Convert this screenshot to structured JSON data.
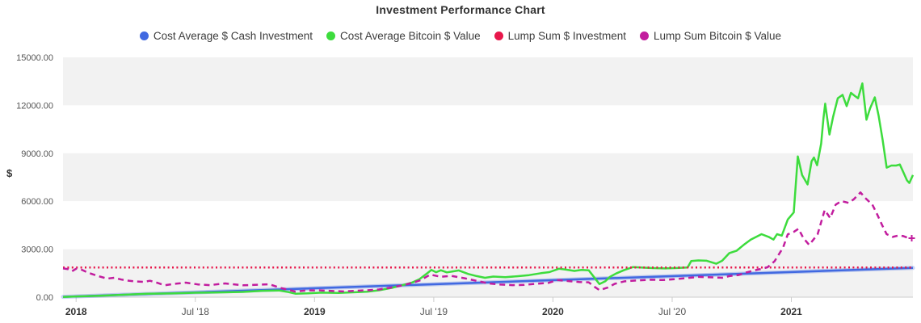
{
  "title": "Investment Performance Chart",
  "legend": {
    "items": [
      {
        "label": "Cost Average $ Cash Investment",
        "color": "#4169e1"
      },
      {
        "label": "Cost Average Bitcoin $ Value",
        "color": "#3ddc3d"
      },
      {
        "label": "Lump Sum $ Investment",
        "color": "#e8174b"
      },
      {
        "label": "Lump Sum Bitcoin $ Value",
        "color": "#c21d9e"
      }
    ]
  },
  "chart_data": {
    "type": "line",
    "title": "Investment Performance Chart",
    "ylabel": "$",
    "legend_position": "top",
    "grid_bands": true,
    "band_colors": [
      "#f2f2f2",
      "#ffffff"
    ],
    "axis_color": "#cccccc",
    "x_domain": [
      2017.945,
      2021.51
    ],
    "y_domain": [
      0,
      15000
    ],
    "y_ticks": [
      {
        "value": 15000,
        "label": "15000.00"
      },
      {
        "value": 12000,
        "label": "12000.00"
      },
      {
        "value": 9000,
        "label": "9000.00"
      },
      {
        "value": 6000,
        "label": "6000.00"
      },
      {
        "value": 3000,
        "label": "3000.00"
      },
      {
        "value": 0,
        "label": "0.00"
      }
    ],
    "x_ticks": [
      {
        "value": 2018,
        "label": "2018",
        "bold": true
      },
      {
        "value": 2018.5,
        "label": "Jul '18",
        "bold": false
      },
      {
        "value": 2019,
        "label": "2019",
        "bold": true
      },
      {
        "value": 2019.5,
        "label": "Jul '19",
        "bold": false
      },
      {
        "value": 2020,
        "label": "2020",
        "bold": true
      },
      {
        "value": 2020.5,
        "label": "Jul '20",
        "bold": false
      },
      {
        "value": 2021,
        "label": "2021",
        "bold": true
      }
    ],
    "series": [
      {
        "name": "Cost Average $ Cash Investment",
        "color": "#4169e1",
        "style": "solid",
        "glow": true,
        "points": [
          [
            2017.945,
            20
          ],
          [
            2021.51,
            1830
          ]
        ]
      },
      {
        "name": "Cost Average Bitcoin $ Value",
        "color": "#3ddc3d",
        "style": "solid",
        "points": [
          [
            2017.945,
            15
          ],
          [
            2018.0,
            45
          ],
          [
            2018.1,
            90
          ],
          [
            2018.2,
            150
          ],
          [
            2018.3,
            210
          ],
          [
            2018.4,
            230
          ],
          [
            2018.5,
            280
          ],
          [
            2018.6,
            300
          ],
          [
            2018.7,
            330
          ],
          [
            2018.78,
            400
          ],
          [
            2018.85,
            420
          ],
          [
            2018.89,
            320
          ],
          [
            2018.92,
            215
          ],
          [
            2018.97,
            235
          ],
          [
            2019.03,
            285
          ],
          [
            2019.1,
            265
          ],
          [
            2019.17,
            310
          ],
          [
            2019.22,
            345
          ],
          [
            2019.27,
            430
          ],
          [
            2019.33,
            600
          ],
          [
            2019.37,
            750
          ],
          [
            2019.41,
            920
          ],
          [
            2019.44,
            1120
          ],
          [
            2019.475,
            1520
          ],
          [
            2019.49,
            1700
          ],
          [
            2019.51,
            1560
          ],
          [
            2019.53,
            1680
          ],
          [
            2019.555,
            1550
          ],
          [
            2019.58,
            1610
          ],
          [
            2019.605,
            1670
          ],
          [
            2019.645,
            1450
          ],
          [
            2019.68,
            1320
          ],
          [
            2019.715,
            1210
          ],
          [
            2019.75,
            1290
          ],
          [
            2019.8,
            1245
          ],
          [
            2019.85,
            1310
          ],
          [
            2019.9,
            1380
          ],
          [
            2019.95,
            1500
          ],
          [
            2019.985,
            1565
          ],
          [
            2020.025,
            1780
          ],
          [
            2020.055,
            1720
          ],
          [
            2020.09,
            1640
          ],
          [
            2020.12,
            1700
          ],
          [
            2020.15,
            1680
          ],
          [
            2020.175,
            1200
          ],
          [
            2020.195,
            820
          ],
          [
            2020.22,
            1000
          ],
          [
            2020.24,
            1280
          ],
          [
            2020.265,
            1480
          ],
          [
            2020.3,
            1700
          ],
          [
            2020.335,
            1880
          ],
          [
            2020.375,
            1850
          ],
          [
            2020.42,
            1820
          ],
          [
            2020.47,
            1800
          ],
          [
            2020.52,
            1825
          ],
          [
            2020.565,
            1855
          ],
          [
            2020.58,
            2260
          ],
          [
            2020.61,
            2300
          ],
          [
            2020.645,
            2280
          ],
          [
            2020.685,
            2090
          ],
          [
            2020.71,
            2280
          ],
          [
            2020.74,
            2760
          ],
          [
            2020.77,
            2900
          ],
          [
            2020.8,
            3270
          ],
          [
            2020.83,
            3600
          ],
          [
            2020.875,
            3940
          ],
          [
            2020.905,
            3770
          ],
          [
            2020.925,
            3600
          ],
          [
            2020.94,
            3940
          ],
          [
            2020.96,
            3850
          ],
          [
            2020.985,
            4860
          ],
          [
            2021.01,
            5300
          ],
          [
            2021.027,
            8800
          ],
          [
            2021.045,
            7640
          ],
          [
            2021.068,
            7050
          ],
          [
            2021.085,
            8500
          ],
          [
            2021.095,
            8730
          ],
          [
            2021.108,
            8250
          ],
          [
            2021.125,
            9600
          ],
          [
            2021.135,
            11200
          ],
          [
            2021.142,
            12100
          ],
          [
            2021.16,
            10170
          ],
          [
            2021.175,
            11260
          ],
          [
            2021.195,
            12440
          ],
          [
            2021.215,
            12650
          ],
          [
            2021.232,
            11950
          ],
          [
            2021.25,
            12780
          ],
          [
            2021.265,
            12600
          ],
          [
            2021.28,
            12440
          ],
          [
            2021.298,
            13370
          ],
          [
            2021.315,
            11100
          ],
          [
            2021.33,
            11800
          ],
          [
            2021.35,
            12500
          ],
          [
            2021.366,
            11360
          ],
          [
            2021.383,
            9840
          ],
          [
            2021.4,
            8100
          ],
          [
            2021.42,
            8230
          ],
          [
            2021.44,
            8230
          ],
          [
            2021.455,
            8300
          ],
          [
            2021.47,
            7810
          ],
          [
            2021.485,
            7310
          ],
          [
            2021.495,
            7140
          ],
          [
            2021.51,
            7640
          ]
        ]
      },
      {
        "name": "Lump Sum $ Investment",
        "color": "#e8174b",
        "style": "dotted",
        "points": [
          [
            2017.945,
            1860
          ],
          [
            2021.51,
            1860
          ]
        ]
      },
      {
        "name": "Lump Sum Bitcoin $ Value",
        "color": "#c21d9e",
        "style": "dashed",
        "end_marker": "plus",
        "points": [
          [
            2017.945,
            1800
          ],
          [
            2017.965,
            1760
          ],
          [
            2017.983,
            1620
          ],
          [
            2018.0,
            1780
          ],
          [
            2018.02,
            1740
          ],
          [
            2018.045,
            1560
          ],
          [
            2018.07,
            1430
          ],
          [
            2018.1,
            1290
          ],
          [
            2018.13,
            1160
          ],
          [
            2018.16,
            1210
          ],
          [
            2018.19,
            1100
          ],
          [
            2018.22,
            1030
          ],
          [
            2018.25,
            980
          ],
          [
            2018.285,
            960
          ],
          [
            2018.31,
            1025
          ],
          [
            2018.34,
            900
          ],
          [
            2018.37,
            740
          ],
          [
            2018.42,
            845
          ],
          [
            2018.46,
            910
          ],
          [
            2018.51,
            800
          ],
          [
            2018.56,
            750
          ],
          [
            2018.625,
            860
          ],
          [
            2018.7,
            740
          ],
          [
            2018.765,
            780
          ],
          [
            2018.81,
            810
          ],
          [
            2018.86,
            570
          ],
          [
            2018.92,
            350
          ],
          [
            2018.965,
            420
          ],
          [
            2019.02,
            430
          ],
          [
            2019.07,
            390
          ],
          [
            2019.12,
            360
          ],
          [
            2019.17,
            400
          ],
          [
            2019.22,
            430
          ],
          [
            2019.27,
            480
          ],
          [
            2019.33,
            620
          ],
          [
            2019.37,
            740
          ],
          [
            2019.41,
            900
          ],
          [
            2019.445,
            1060
          ],
          [
            2019.485,
            1410
          ],
          [
            2019.53,
            1280
          ],
          [
            2019.575,
            1330
          ],
          [
            2019.63,
            1180
          ],
          [
            2019.68,
            1020
          ],
          [
            2019.73,
            860
          ],
          [
            2019.78,
            790
          ],
          [
            2019.83,
            750
          ],
          [
            2019.88,
            770
          ],
          [
            2019.93,
            840
          ],
          [
            2019.98,
            890
          ],
          [
            2020.02,
            1070
          ],
          [
            2020.07,
            1000
          ],
          [
            2020.11,
            950
          ],
          [
            2020.15,
            930
          ],
          [
            2020.175,
            640
          ],
          [
            2020.195,
            440
          ],
          [
            2020.23,
            600
          ],
          [
            2020.26,
            840
          ],
          [
            2020.3,
            990
          ],
          [
            2020.36,
            1050
          ],
          [
            2020.41,
            1090
          ],
          [
            2020.46,
            1070
          ],
          [
            2020.51,
            1120
          ],
          [
            2020.56,
            1190
          ],
          [
            2020.61,
            1270
          ],
          [
            2020.66,
            1240
          ],
          [
            2020.71,
            1210
          ],
          [
            2020.74,
            1320
          ],
          [
            2020.78,
            1390
          ],
          [
            2020.81,
            1540
          ],
          [
            2020.85,
            1690
          ],
          [
            2020.88,
            1790
          ],
          [
            2020.9,
            1870
          ],
          [
            2020.93,
            2250
          ],
          [
            2020.965,
            3090
          ],
          [
            2020.985,
            3930
          ],
          [
            2021.01,
            4080
          ],
          [
            2021.03,
            4280
          ],
          [
            2021.05,
            3700
          ],
          [
            2021.075,
            3270
          ],
          [
            2021.11,
            3930
          ],
          [
            2021.14,
            5450
          ],
          [
            2021.163,
            4950
          ],
          [
            2021.186,
            5790
          ],
          [
            2021.21,
            6010
          ],
          [
            2021.24,
            5900
          ],
          [
            2021.262,
            6120
          ],
          [
            2021.29,
            6550
          ],
          [
            2021.31,
            6200
          ],
          [
            2021.34,
            5790
          ],
          [
            2021.362,
            5120
          ],
          [
            2021.383,
            4440
          ],
          [
            2021.4,
            3940
          ],
          [
            2021.425,
            3770
          ],
          [
            2021.45,
            3860
          ],
          [
            2021.47,
            3820
          ],
          [
            2021.49,
            3700
          ],
          [
            2021.505,
            3690
          ]
        ]
      }
    ]
  }
}
